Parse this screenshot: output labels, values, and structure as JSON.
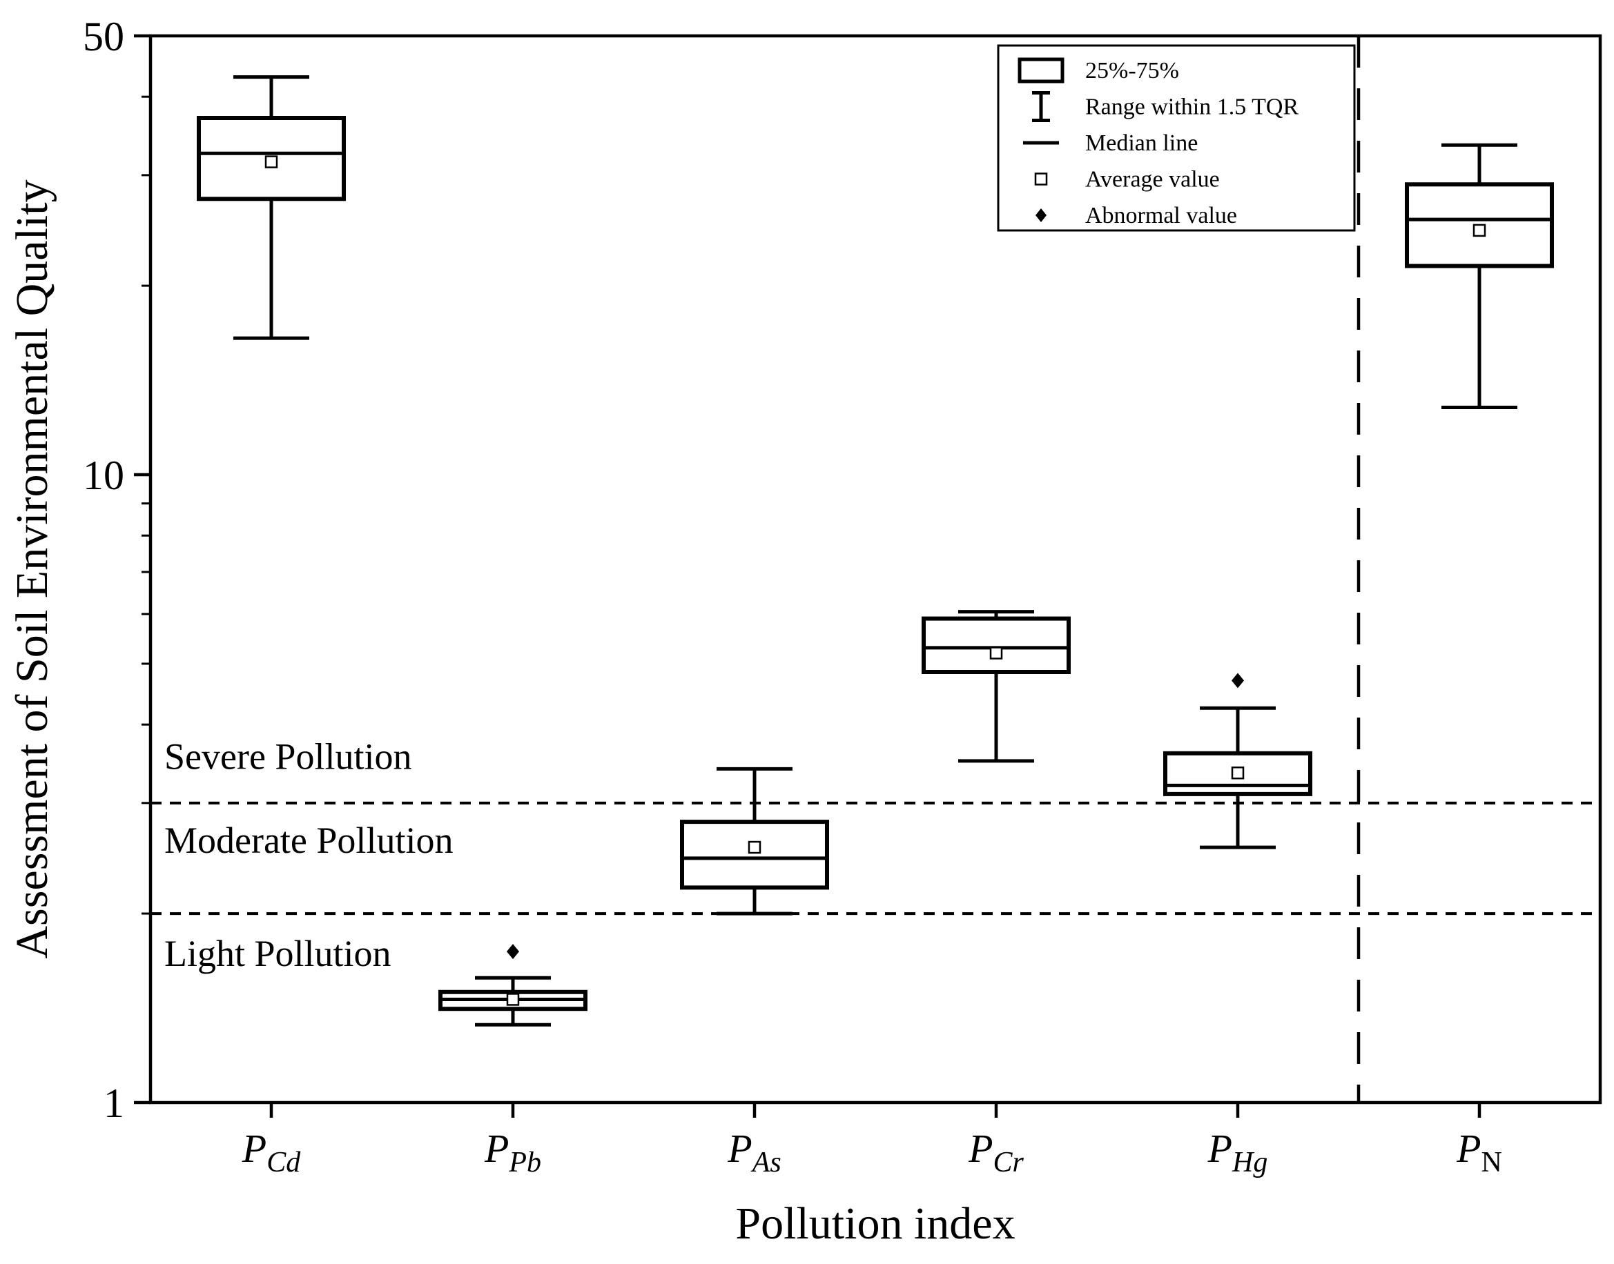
{
  "figure": {
    "background": "#ffffff"
  },
  "chart_data": {
    "type": "boxplot",
    "title": "",
    "xlabel": "Pollution index",
    "ylabel": "Assessment of Soil Environmental Quality",
    "y_scale": "log",
    "ylim": [
      1,
      50
    ],
    "y_major_ticks": [
      50,
      10,
      1
    ],
    "y_minor_ticks": [
      2,
      3,
      4,
      5,
      6,
      7,
      8,
      9,
      20,
      30,
      40
    ],
    "categories": [
      {
        "main": "P",
        "sub": "Cd",
        "sub_italic": true
      },
      {
        "main": "P",
        "sub": "Pb",
        "sub_italic": true
      },
      {
        "main": "P",
        "sub": "As",
        "sub_italic": true
      },
      {
        "main": "P",
        "sub": "Cr",
        "sub_italic": true
      },
      {
        "main": "P",
        "sub": "Hg",
        "sub_italic": true
      },
      {
        "main": "P",
        "sub": "N",
        "sub_italic": false
      }
    ],
    "boxes": [
      {
        "name": "P_Cd",
        "whisker_low": 16.5,
        "q1": 27.5,
        "median": 32.5,
        "mean": 31.5,
        "q3": 37,
        "whisker_high": 43,
        "outliers": []
      },
      {
        "name": "P_Pb",
        "whisker_low": 1.33,
        "q1": 1.41,
        "median": 1.46,
        "mean": 1.46,
        "q3": 1.5,
        "whisker_high": 1.58,
        "outliers": [
          1.74
        ]
      },
      {
        "name": "P_As",
        "whisker_low": 2.0,
        "q1": 2.2,
        "median": 2.45,
        "mean": 2.55,
        "q3": 2.8,
        "whisker_high": 3.4,
        "outliers": []
      },
      {
        "name": "P_Cr",
        "whisker_low": 3.5,
        "q1": 4.85,
        "median": 5.3,
        "mean": 5.2,
        "q3": 5.9,
        "whisker_high": 6.05,
        "outliers": []
      },
      {
        "name": "P_Hg",
        "whisker_low": 2.55,
        "q1": 3.1,
        "median": 3.2,
        "mean": 3.35,
        "q3": 3.6,
        "whisker_high": 4.25,
        "outliers": [
          4.7
        ]
      },
      {
        "name": "P_N",
        "whisker_low": 12.8,
        "q1": 21.5,
        "median": 25.5,
        "mean": 24.5,
        "q3": 29,
        "whisker_high": 33.5,
        "outliers": []
      }
    ],
    "threshold_lines": [
      {
        "name": "severe-threshold",
        "value": 3,
        "style": "dashed"
      },
      {
        "name": "moderate-threshold",
        "value": 2,
        "style": "dashed"
      }
    ],
    "region_labels": [
      {
        "label": "Severe Pollution",
        "value": 3.4
      },
      {
        "label": "Moderate Pollution",
        "value": 2.5
      },
      {
        "label": "Light Pollution",
        "value": 1.65
      }
    ],
    "vertical_divider": {
      "between_categories": [
        4,
        5
      ],
      "style": "dashed"
    },
    "legend": {
      "items": [
        {
          "icon": "box",
          "label": "25%-75%"
        },
        {
          "icon": "errorbar",
          "label": "Range within 1.5 TQR"
        },
        {
          "icon": "median-line",
          "label": "Median line"
        },
        {
          "icon": "open-square",
          "label": "Average value"
        },
        {
          "icon": "filled-diamond",
          "label": "Abnormal value"
        }
      ]
    },
    "colors": {
      "stroke": "#000000",
      "fill": "#ffffff"
    }
  }
}
